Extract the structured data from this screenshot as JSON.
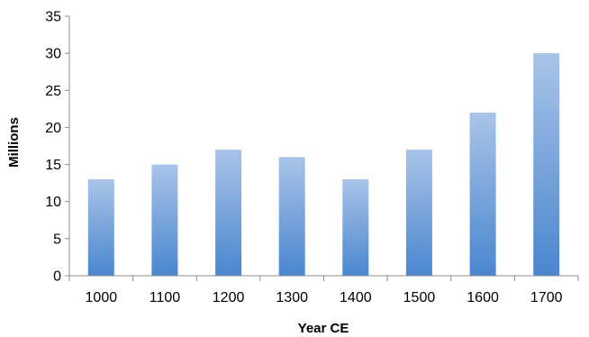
{
  "chart_data": {
    "type": "bar",
    "categories": [
      "1000",
      "1100",
      "1200",
      "1300",
      "1400",
      "1500",
      "1600",
      "1700"
    ],
    "values": [
      13,
      15,
      17,
      16,
      13,
      17,
      22,
      30
    ],
    "xlabel": "Year CE",
    "ylabel": "Millions",
    "ylim": [
      0,
      35
    ],
    "yticks": [
      0,
      5,
      10,
      15,
      20,
      25,
      30,
      35
    ],
    "grid": false,
    "legend": "none",
    "colors": {
      "bar_top": "#a9c4e8",
      "bar_bottom": "#4a86cf",
      "axis": "#8c8c8c"
    }
  }
}
